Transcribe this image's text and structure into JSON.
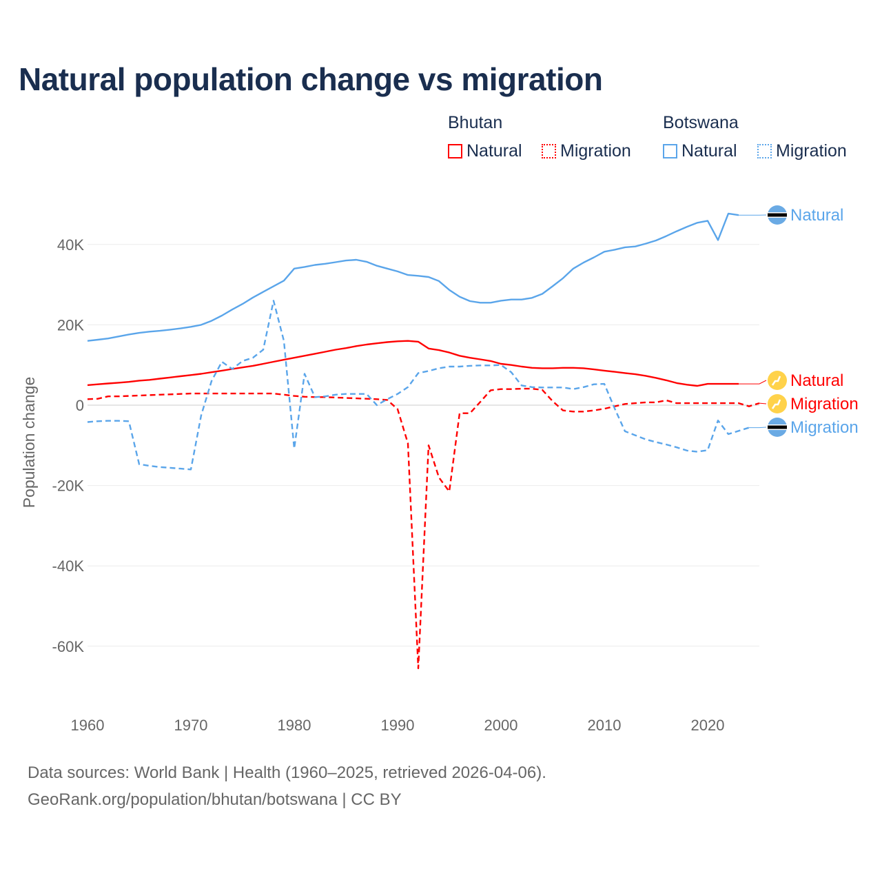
{
  "title": "Natural population change vs migration",
  "legend": {
    "groups": [
      {
        "name": "Bhutan",
        "color": "#ff0000",
        "items": [
          "Natural",
          "Migration"
        ]
      },
      {
        "name": "Botswana",
        "color": "#5aa5ea",
        "items": [
          "Natural",
          "Migration"
        ]
      }
    ]
  },
  "footer": {
    "line1": "Data sources: World Bank | Health (1960–2025, retrieved 2026-04-06).",
    "line2": "GeoRank.org/population/bhutan/botswana | CC BY"
  },
  "chart_data": {
    "type": "line",
    "title": "Natural population change vs migration",
    "xlabel": "",
    "ylabel": "Population change",
    "xlim": [
      1960,
      2025
    ],
    "ylim": [
      -70000,
      50000
    ],
    "x_ticks": [
      1960,
      1970,
      1980,
      1990,
      2000,
      2010,
      2020
    ],
    "y_ticks": [
      40000,
      20000,
      0,
      -20000,
      -40000,
      -60000
    ],
    "y_tick_labels": [
      "40K",
      "20K",
      "0",
      "-20K",
      "-40K",
      "-60K"
    ],
    "grid": true,
    "legend_position": "top-right",
    "x_start": 1960,
    "series": [
      {
        "name": "Botswana Natural",
        "country": "Botswana",
        "label": "Natural",
        "color": "#5aa5ea",
        "dash": false,
        "flag": "botswana-flag",
        "values": [
          16000,
          16300,
          16600,
          17100,
          17600,
          18000,
          18300,
          18500,
          18800,
          19100,
          19500,
          20000,
          21000,
          22300,
          23800,
          25200,
          26800,
          28200,
          29600,
          31000,
          34000,
          34400,
          34900,
          35200,
          35600,
          36000,
          36200,
          35700,
          34700,
          34000,
          33300,
          32400,
          32200,
          31900,
          30900,
          28700,
          27000,
          25900,
          25500,
          25500,
          26000,
          26300,
          26300,
          26700,
          27700,
          29600,
          31600,
          34000,
          35500,
          36800,
          38200,
          38700,
          39300,
          39500,
          40200,
          41000,
          42100,
          43300,
          44400,
          45400,
          45900,
          41100,
          47700,
          47300
        ]
      },
      {
        "name": "Bhutan Natural",
        "country": "Bhutan",
        "label": "Natural",
        "color": "#ff0000",
        "dash": false,
        "flag": "bhutan-flag",
        "values": [
          5000,
          5200,
          5400,
          5600,
          5800,
          6100,
          6300,
          6600,
          6900,
          7200,
          7500,
          7800,
          8200,
          8600,
          9000,
          9400,
          9800,
          10300,
          10800,
          11300,
          11800,
          12300,
          12800,
          13300,
          13800,
          14200,
          14700,
          15100,
          15400,
          15700,
          15900,
          16000,
          15800,
          14100,
          13700,
          13100,
          12300,
          11800,
          11400,
          11000,
          10300,
          10000,
          9600,
          9300,
          9200,
          9200,
          9300,
          9300,
          9200,
          8900,
          8600,
          8300,
          8000,
          7700,
          7300,
          6800,
          6200,
          5500,
          5100,
          4800,
          5300,
          5300,
          5300,
          5300
        ]
      },
      {
        "name": "Bhutan Migration",
        "country": "Bhutan",
        "label": "Migration",
        "color": "#ff0000",
        "dash": true,
        "flag": "bhutan-flag",
        "values": [
          1500,
          1600,
          2200,
          2200,
          2300,
          2400,
          2500,
          2600,
          2700,
          2800,
          2900,
          2900,
          2900,
          2900,
          2900,
          2900,
          2900,
          2900,
          2900,
          2600,
          2300,
          2100,
          2000,
          2000,
          1900,
          1800,
          1700,
          1600,
          1500,
          1300,
          -1000,
          -9500,
          -65500,
          -10000,
          -18000,
          -21500,
          -2000,
          -2000,
          800,
          3700,
          4000,
          4000,
          4100,
          4100,
          3800,
          1000,
          -1300,
          -1600,
          -1600,
          -1300,
          -900,
          -300,
          300,
          500,
          700,
          700,
          1200,
          500,
          500,
          500,
          500,
          500,
          500,
          500,
          -300,
          500
        ]
      },
      {
        "name": "Botswana Migration",
        "country": "Botswana",
        "label": "Migration",
        "color": "#5aa5ea",
        "dash": true,
        "flag": "botswana-flag",
        "values": [
          -4200,
          -4000,
          -3900,
          -3900,
          -4000,
          -14700,
          -15100,
          -15400,
          -15600,
          -15800,
          -16000,
          -2500,
          6000,
          10800,
          9000,
          11000,
          11800,
          13800,
          26000,
          16000,
          -10800,
          7800,
          2000,
          2200,
          2600,
          2800,
          2800,
          2800,
          0,
          1500,
          2800,
          4500,
          8000,
          8500,
          9200,
          9600,
          9600,
          9800,
          9900,
          9900,
          10000,
          8200,
          4900,
          4500,
          4400,
          4400,
          4400,
          4000,
          4500,
          5200,
          5300,
          -800,
          -6500,
          -7500,
          -8500,
          -9200,
          -9800,
          -10500,
          -11300,
          -11600,
          -11200,
          -3800,
          -7200,
          -6400,
          -5600
        ]
      }
    ]
  }
}
